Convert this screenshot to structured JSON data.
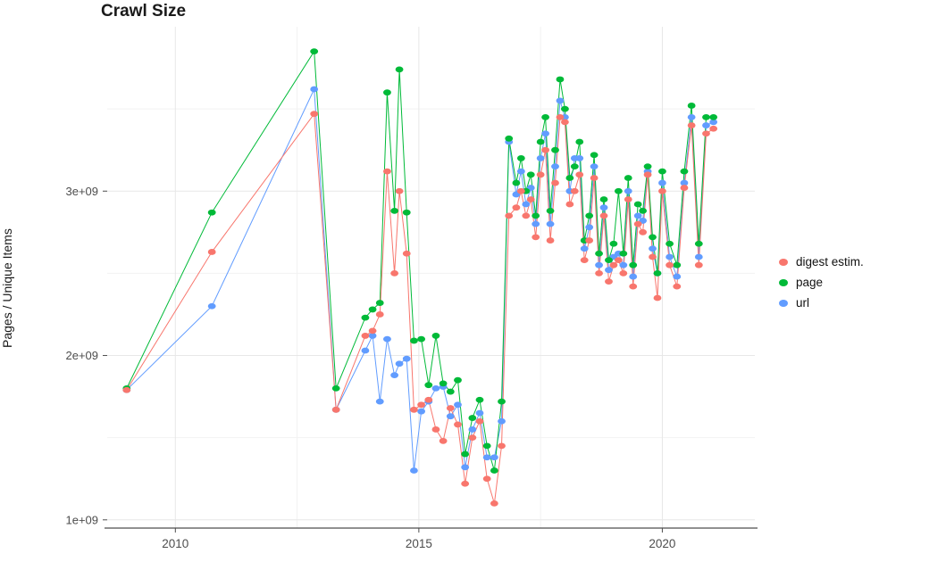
{
  "chart_data": {
    "type": "line",
    "title": "Crawl Size",
    "xlabel": "",
    "ylabel": "Pages / Unique Items",
    "y_values_unit": "billions (1e9)",
    "grid": true,
    "legend_position": "right",
    "xlim": [
      2008.6,
      2021.9
    ],
    "ylim": [
      0.95,
      4.0
    ],
    "x_ticks": [
      {
        "value": 2010,
        "label": "2010"
      },
      {
        "value": 2015,
        "label": "2015"
      },
      {
        "value": 2020,
        "label": "2020"
      }
    ],
    "x_minor": [
      2012.5,
      2017.5
    ],
    "y_ticks": [
      {
        "value": 1,
        "label": "1e+09"
      },
      {
        "value": 2,
        "label": "2e+09"
      },
      {
        "value": 3,
        "label": "3e+09"
      }
    ],
    "y_minor": [
      1.5,
      2.5,
      3.5
    ],
    "x": [
      2009.0,
      2010.75,
      2012.85,
      2013.3,
      2013.9,
      2014.05,
      2014.2,
      2014.35,
      2014.5,
      2014.6,
      2014.75,
      2014.9,
      2015.05,
      2015.2,
      2015.35,
      2015.5,
      2015.65,
      2015.8,
      2015.95,
      2016.1,
      2016.25,
      2016.4,
      2016.55,
      2016.7,
      2016.85,
      2017.0,
      2017.1,
      2017.2,
      2017.3,
      2017.4,
      2017.5,
      2017.6,
      2017.7,
      2017.8,
      2017.9,
      2018.0,
      2018.1,
      2018.2,
      2018.3,
      2018.4,
      2018.5,
      2018.6,
      2018.7,
      2018.8,
      2018.9,
      2019.0,
      2019.1,
      2019.2,
      2019.3,
      2019.4,
      2019.5,
      2019.6,
      2019.7,
      2019.8,
      2019.9,
      2020.0,
      2020.15,
      2020.3,
      2020.45,
      2020.6,
      2020.75,
      2020.9,
      2021.05
    ],
    "series": [
      {
        "name": "digest estim.",
        "color": "#F8766D",
        "values": [
          1.79,
          2.63,
          3.47,
          1.67,
          2.12,
          2.15,
          2.25,
          3.12,
          2.5,
          3.0,
          2.62,
          1.67,
          1.7,
          1.73,
          1.55,
          1.48,
          1.68,
          1.58,
          1.22,
          1.5,
          1.6,
          1.25,
          1.1,
          1.45,
          2.85,
          2.9,
          3.0,
          2.85,
          2.95,
          2.72,
          3.1,
          3.25,
          2.7,
          3.05,
          3.45,
          3.42,
          2.92,
          3.0,
          3.1,
          2.58,
          2.7,
          3.08,
          2.5,
          2.85,
          2.45,
          2.55,
          2.58,
          2.5,
          2.95,
          2.42,
          2.8,
          2.75,
          3.1,
          2.6,
          2.35,
          3.0,
          2.55,
          2.42,
          3.02,
          3.4,
          2.55,
          3.35,
          3.38
        ]
      },
      {
        "name": "page",
        "color": "#00BA38",
        "values": [
          1.8,
          2.87,
          3.85,
          1.8,
          2.23,
          2.28,
          2.32,
          3.6,
          2.88,
          3.74,
          2.87,
          2.09,
          2.1,
          1.82,
          2.12,
          1.83,
          1.78,
          1.85,
          1.4,
          1.62,
          1.73,
          1.45,
          1.3,
          1.72,
          3.32,
          3.05,
          3.2,
          3.0,
          3.1,
          2.85,
          3.3,
          3.45,
          2.88,
          3.25,
          3.68,
          3.5,
          3.08,
          3.15,
          3.3,
          2.7,
          2.85,
          3.22,
          2.62,
          2.95,
          2.58,
          2.68,
          3.0,
          2.62,
          3.08,
          2.55,
          2.92,
          2.88,
          3.15,
          2.72,
          2.5,
          3.12,
          2.68,
          2.55,
          3.12,
          3.52,
          2.68,
          3.45,
          3.45
        ]
      },
      {
        "name": "url",
        "color": "#619CFF",
        "values": [
          1.79,
          2.3,
          3.62,
          1.67,
          2.03,
          2.12,
          1.72,
          2.1,
          1.88,
          1.95,
          1.98,
          1.3,
          1.66,
          1.72,
          1.8,
          1.81,
          1.63,
          1.7,
          1.32,
          1.55,
          1.65,
          1.38,
          1.38,
          1.6,
          3.3,
          2.98,
          3.12,
          2.92,
          3.02,
          2.8,
          3.2,
          3.35,
          2.8,
          3.15,
          3.55,
          3.45,
          3.0,
          3.2,
          3.2,
          2.65,
          2.78,
          3.15,
          2.55,
          2.9,
          2.52,
          2.6,
          2.62,
          2.55,
          3.0,
          2.48,
          2.85,
          2.82,
          3.12,
          2.65,
          2.5,
          3.05,
          2.6,
          2.48,
          3.05,
          3.45,
          2.6,
          3.4,
          3.42
        ]
      }
    ]
  },
  "style": {
    "background": "#ffffff",
    "grid_major_color": "#e7e7e7",
    "grid_minor_color": "#f2f2f2",
    "axis_line_color": "#4d4d4d",
    "tick_label_color": "#4d4d4d"
  }
}
